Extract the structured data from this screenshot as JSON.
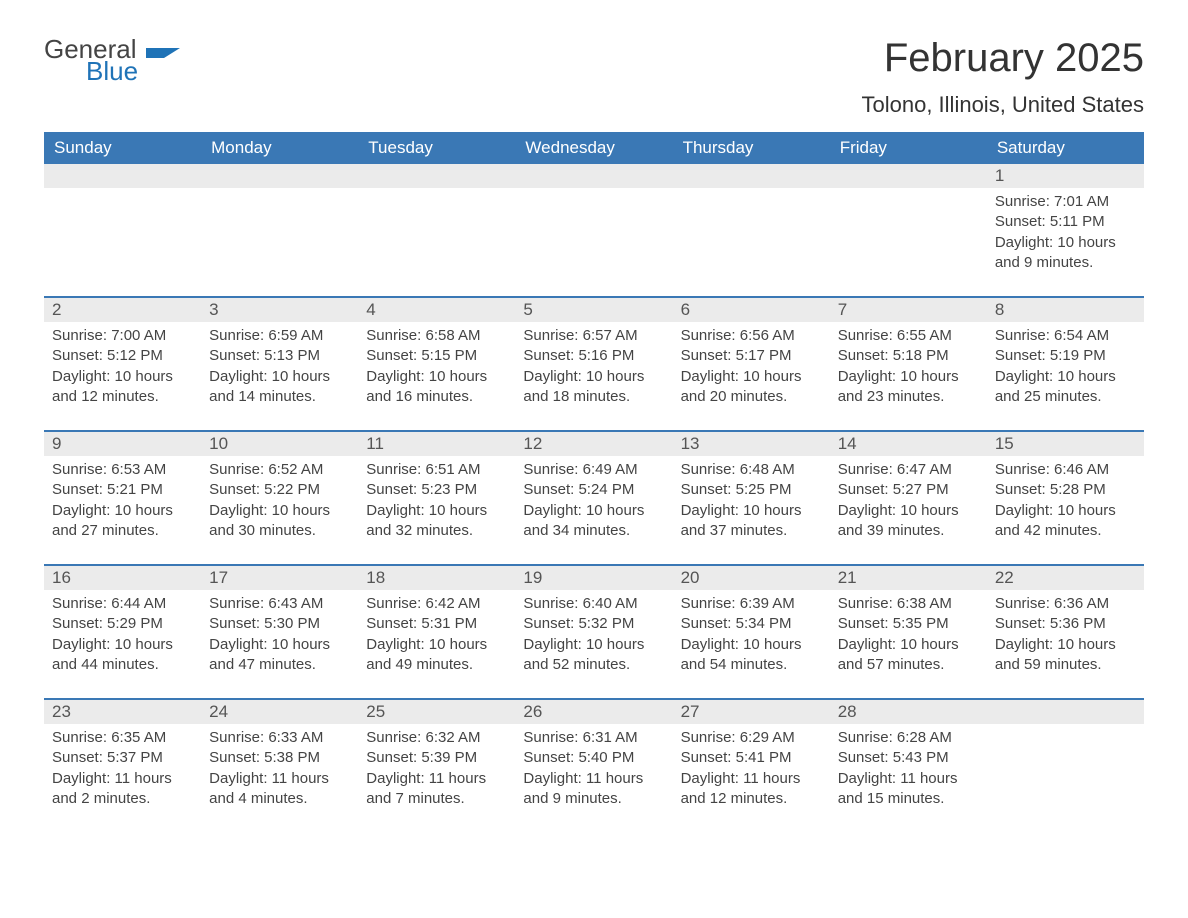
{
  "logo": {
    "word1": "General",
    "word2": "Blue",
    "flag_color": "#1f73b7"
  },
  "title": "February 2025",
  "location": "Tolono, Illinois, United States",
  "colors": {
    "header_bg": "#3a78b5",
    "header_text": "#ffffff",
    "daynum_bg": "#ebebeb",
    "week_border": "#3a78b5",
    "body_text": "#444444",
    "page_bg": "#ffffff"
  },
  "day_labels": [
    "Sunday",
    "Monday",
    "Tuesday",
    "Wednesday",
    "Thursday",
    "Friday",
    "Saturday"
  ],
  "weeks": [
    [
      {
        "n": "",
        "sunrise": "",
        "sunset": "",
        "daylight": ""
      },
      {
        "n": "",
        "sunrise": "",
        "sunset": "",
        "daylight": ""
      },
      {
        "n": "",
        "sunrise": "",
        "sunset": "",
        "daylight": ""
      },
      {
        "n": "",
        "sunrise": "",
        "sunset": "",
        "daylight": ""
      },
      {
        "n": "",
        "sunrise": "",
        "sunset": "",
        "daylight": ""
      },
      {
        "n": "",
        "sunrise": "",
        "sunset": "",
        "daylight": ""
      },
      {
        "n": "1",
        "sunrise": "Sunrise: 7:01 AM",
        "sunset": "Sunset: 5:11 PM",
        "daylight": "Daylight: 10 hours and 9 minutes."
      }
    ],
    [
      {
        "n": "2",
        "sunrise": "Sunrise: 7:00 AM",
        "sunset": "Sunset: 5:12 PM",
        "daylight": "Daylight: 10 hours and 12 minutes."
      },
      {
        "n": "3",
        "sunrise": "Sunrise: 6:59 AM",
        "sunset": "Sunset: 5:13 PM",
        "daylight": "Daylight: 10 hours and 14 minutes."
      },
      {
        "n": "4",
        "sunrise": "Sunrise: 6:58 AM",
        "sunset": "Sunset: 5:15 PM",
        "daylight": "Daylight: 10 hours and 16 minutes."
      },
      {
        "n": "5",
        "sunrise": "Sunrise: 6:57 AM",
        "sunset": "Sunset: 5:16 PM",
        "daylight": "Daylight: 10 hours and 18 minutes."
      },
      {
        "n": "6",
        "sunrise": "Sunrise: 6:56 AM",
        "sunset": "Sunset: 5:17 PM",
        "daylight": "Daylight: 10 hours and 20 minutes."
      },
      {
        "n": "7",
        "sunrise": "Sunrise: 6:55 AM",
        "sunset": "Sunset: 5:18 PM",
        "daylight": "Daylight: 10 hours and 23 minutes."
      },
      {
        "n": "8",
        "sunrise": "Sunrise: 6:54 AM",
        "sunset": "Sunset: 5:19 PM",
        "daylight": "Daylight: 10 hours and 25 minutes."
      }
    ],
    [
      {
        "n": "9",
        "sunrise": "Sunrise: 6:53 AM",
        "sunset": "Sunset: 5:21 PM",
        "daylight": "Daylight: 10 hours and 27 minutes."
      },
      {
        "n": "10",
        "sunrise": "Sunrise: 6:52 AM",
        "sunset": "Sunset: 5:22 PM",
        "daylight": "Daylight: 10 hours and 30 minutes."
      },
      {
        "n": "11",
        "sunrise": "Sunrise: 6:51 AM",
        "sunset": "Sunset: 5:23 PM",
        "daylight": "Daylight: 10 hours and 32 minutes."
      },
      {
        "n": "12",
        "sunrise": "Sunrise: 6:49 AM",
        "sunset": "Sunset: 5:24 PM",
        "daylight": "Daylight: 10 hours and 34 minutes."
      },
      {
        "n": "13",
        "sunrise": "Sunrise: 6:48 AM",
        "sunset": "Sunset: 5:25 PM",
        "daylight": "Daylight: 10 hours and 37 minutes."
      },
      {
        "n": "14",
        "sunrise": "Sunrise: 6:47 AM",
        "sunset": "Sunset: 5:27 PM",
        "daylight": "Daylight: 10 hours and 39 minutes."
      },
      {
        "n": "15",
        "sunrise": "Sunrise: 6:46 AM",
        "sunset": "Sunset: 5:28 PM",
        "daylight": "Daylight: 10 hours and 42 minutes."
      }
    ],
    [
      {
        "n": "16",
        "sunrise": "Sunrise: 6:44 AM",
        "sunset": "Sunset: 5:29 PM",
        "daylight": "Daylight: 10 hours and 44 minutes."
      },
      {
        "n": "17",
        "sunrise": "Sunrise: 6:43 AM",
        "sunset": "Sunset: 5:30 PM",
        "daylight": "Daylight: 10 hours and 47 minutes."
      },
      {
        "n": "18",
        "sunrise": "Sunrise: 6:42 AM",
        "sunset": "Sunset: 5:31 PM",
        "daylight": "Daylight: 10 hours and 49 minutes."
      },
      {
        "n": "19",
        "sunrise": "Sunrise: 6:40 AM",
        "sunset": "Sunset: 5:32 PM",
        "daylight": "Daylight: 10 hours and 52 minutes."
      },
      {
        "n": "20",
        "sunrise": "Sunrise: 6:39 AM",
        "sunset": "Sunset: 5:34 PM",
        "daylight": "Daylight: 10 hours and 54 minutes."
      },
      {
        "n": "21",
        "sunrise": "Sunrise: 6:38 AM",
        "sunset": "Sunset: 5:35 PM",
        "daylight": "Daylight: 10 hours and 57 minutes."
      },
      {
        "n": "22",
        "sunrise": "Sunrise: 6:36 AM",
        "sunset": "Sunset: 5:36 PM",
        "daylight": "Daylight: 10 hours and 59 minutes."
      }
    ],
    [
      {
        "n": "23",
        "sunrise": "Sunrise: 6:35 AM",
        "sunset": "Sunset: 5:37 PM",
        "daylight": "Daylight: 11 hours and 2 minutes."
      },
      {
        "n": "24",
        "sunrise": "Sunrise: 6:33 AM",
        "sunset": "Sunset: 5:38 PM",
        "daylight": "Daylight: 11 hours and 4 minutes."
      },
      {
        "n": "25",
        "sunrise": "Sunrise: 6:32 AM",
        "sunset": "Sunset: 5:39 PM",
        "daylight": "Daylight: 11 hours and 7 minutes."
      },
      {
        "n": "26",
        "sunrise": "Sunrise: 6:31 AM",
        "sunset": "Sunset: 5:40 PM",
        "daylight": "Daylight: 11 hours and 9 minutes."
      },
      {
        "n": "27",
        "sunrise": "Sunrise: 6:29 AM",
        "sunset": "Sunset: 5:41 PM",
        "daylight": "Daylight: 11 hours and 12 minutes."
      },
      {
        "n": "28",
        "sunrise": "Sunrise: 6:28 AM",
        "sunset": "Sunset: 5:43 PM",
        "daylight": "Daylight: 11 hours and 15 minutes."
      },
      {
        "n": "",
        "sunrise": "",
        "sunset": "",
        "daylight": ""
      }
    ]
  ]
}
